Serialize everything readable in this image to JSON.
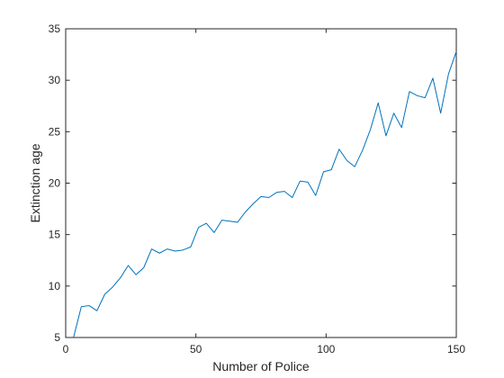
{
  "chart_data": {
    "type": "line",
    "title": "",
    "xlabel": "Number of Police",
    "ylabel": "Extinction age",
    "xlim": [
      0,
      150
    ],
    "ylim": [
      5,
      35
    ],
    "xticks": [
      0,
      50,
      100,
      150
    ],
    "yticks": [
      5,
      10,
      15,
      20,
      25,
      30,
      35
    ],
    "grid": false,
    "series": [
      {
        "color": "#0072bd",
        "x": [
          3,
          6,
          9,
          12,
          15,
          18,
          21,
          24,
          27,
          30,
          33,
          36,
          39,
          42,
          45,
          48,
          51,
          54,
          57,
          60,
          63,
          66,
          69,
          72,
          75,
          78,
          81,
          84,
          87,
          90,
          93,
          96,
          99,
          102,
          105,
          108,
          111,
          114,
          117,
          120,
          123,
          126,
          129,
          132,
          135,
          138,
          141,
          144,
          147,
          150
        ],
        "y": [
          5.0,
          8.0,
          8.1,
          7.6,
          9.2,
          9.9,
          10.8,
          12.0,
          11.1,
          11.8,
          13.6,
          13.2,
          13.6,
          13.4,
          13.5,
          13.8,
          15.7,
          16.1,
          15.2,
          16.4,
          16.3,
          16.2,
          17.2,
          18.0,
          18.7,
          18.6,
          19.1,
          19.2,
          18.6,
          20.2,
          20.1,
          18.8,
          21.1,
          21.3,
          23.3,
          22.2,
          21.6,
          23.2,
          25.2,
          27.8,
          24.6,
          26.8,
          25.4,
          28.9,
          28.5,
          28.3,
          30.2,
          26.8,
          30.6,
          32.8
        ]
      }
    ]
  }
}
